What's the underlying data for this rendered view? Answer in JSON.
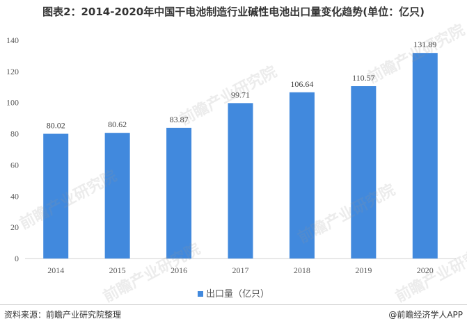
{
  "title": "图表2：2014-2020年中国干电池制造行业碱性电池出口量变化趋势(单位：亿只)",
  "chart_data": {
    "type": "bar",
    "categories": [
      "2014",
      "2015",
      "2016",
      "2017",
      "2018",
      "2019",
      "2020"
    ],
    "series": [
      {
        "name": "出口量（亿只）",
        "values": [
          80.02,
          80.62,
          83.87,
          99.71,
          106.64,
          110.57,
          131.89
        ]
      }
    ],
    "ylim": [
      0,
      140
    ],
    "yticks": [
      0,
      20,
      40,
      60,
      80,
      100,
      120,
      140
    ],
    "xlabel": "",
    "ylabel": "",
    "grid": false,
    "legend": "bottom",
    "bar_color": "#4189DD"
  },
  "watermark": "前瞻产业研究院",
  "source": "资料来源：前瞻产业研究院整理",
  "brand": "@前瞻经济学人APP"
}
